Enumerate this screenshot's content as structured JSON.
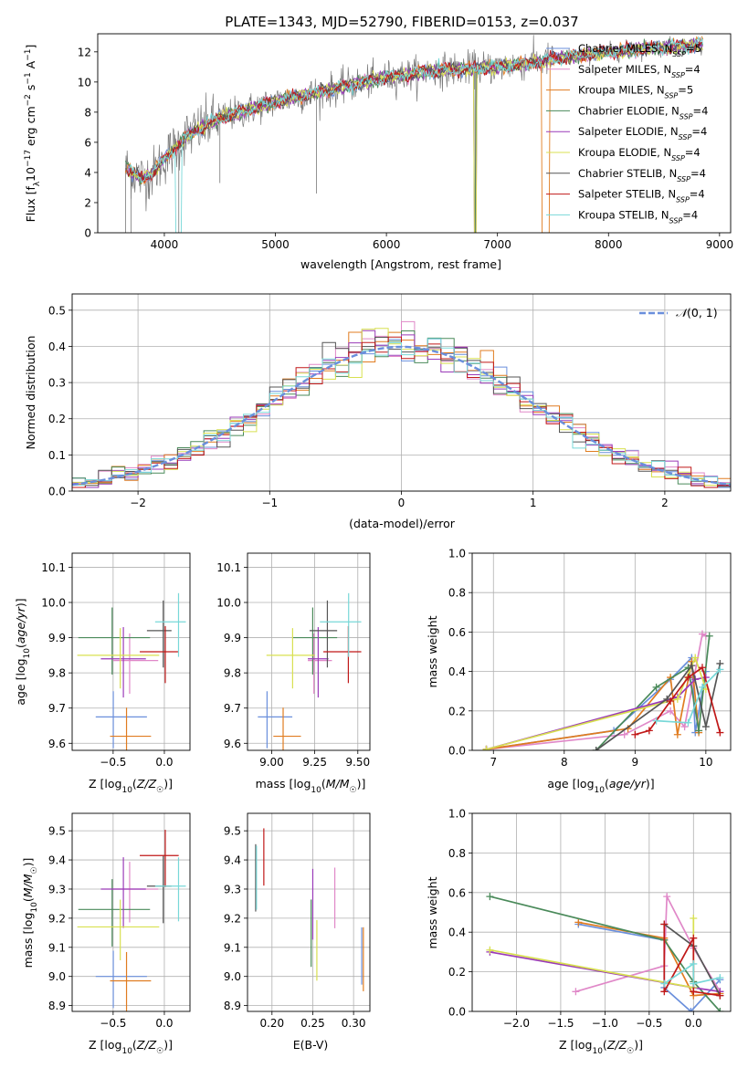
{
  "figure_title": "PLATE=1343, MJD=52790, FIBERID=0153, z=0.037",
  "colors": {
    "Chabrier MILES": "#6a8fdc",
    "Salpeter MILES": "#e088c8",
    "Kroupa MILES": "#e07c20",
    "Chabrier ELODIE": "#4a8a5a",
    "Salpeter ELODIE": "#9a3ab8",
    "Kroupa ELODIE": "#d8e050",
    "Chabrier STELIB": "#555555",
    "Salpeter STELIB": "#c01818",
    "Kroupa STELIB": "#78d8d8",
    "data": "#7a7a7a"
  },
  "legend": [
    {
      "model": "Chabrier MILES",
      "n": "5"
    },
    {
      "model": "Salpeter MILES",
      "n": "4"
    },
    {
      "model": "Kroupa MILES",
      "n": "5"
    },
    {
      "model": "Chabrier ELODIE",
      "n": "4"
    },
    {
      "model": "Salpeter ELODIE",
      "n": "4"
    },
    {
      "model": "Kroupa ELODIE",
      "n": "4"
    },
    {
      "model": "Chabrier STELIB",
      "n": "4"
    },
    {
      "model": "Salpeter STELIB",
      "n": "4"
    },
    {
      "model": "Kroupa STELIB",
      "n": "4"
    }
  ],
  "chart_data": [
    {
      "type": "line",
      "panel": "spectrum",
      "xlabel": "wavelength [Angstrom, rest frame]",
      "ylabel": "Flux [f_λ 10^-17 erg cm^-2 s^-1 A^-1]",
      "xlim": [
        3400,
        9100
      ],
      "ylim": [
        0,
        13.2
      ],
      "xticks": [
        4000,
        5000,
        6000,
        7000,
        8000,
        9000
      ],
      "yticks": [
        0,
        2,
        4,
        6,
        8,
        10,
        12
      ],
      "continuum_x": [
        3650,
        3800,
        3900,
        4000,
        4200,
        4500,
        5000,
        5500,
        6000,
        6500,
        7000,
        7500,
        8000,
        8500,
        8850
      ],
      "continuum_y": [
        4.3,
        3.6,
        4.0,
        4.9,
        6.4,
        7.6,
        8.7,
        9.5,
        10.3,
        10.8,
        11.0,
        11.5,
        12.0,
        12.3,
        12.5
      ],
      "grid": false,
      "legend_position": "upper right"
    },
    {
      "type": "histogram",
      "panel": "residuals",
      "xlabel": "(data-model)/error",
      "ylabel": "Normed distribution",
      "xlim": [
        -2.5,
        2.5
      ],
      "ylim": [
        0,
        0.545
      ],
      "xticks": [
        -2,
        -1,
        0,
        1,
        2
      ],
      "yticks": [
        0.0,
        0.1,
        0.2,
        0.3,
        0.4,
        0.5
      ],
      "bin_width": 0.1,
      "reference_curve": "N(0,1)",
      "grid": true,
      "legend_position": "upper right"
    },
    {
      "type": "scatter",
      "panel": "age-vs-Z",
      "xlabel": "Z [log10(Z/Z☉)]",
      "ylabel": "age [log10(age/yr)]",
      "xlim": [
        -0.9,
        0.25
      ],
      "ylim": [
        9.58,
        10.14
      ],
      "xticks": [
        -0.5,
        0.0
      ],
      "yticks": [
        9.6,
        9.7,
        9.8,
        9.9,
        10.0,
        10.1
      ],
      "points": [
        {
          "model": "Chabrier MILES",
          "x": -0.42,
          "xerr": 0.25,
          "y": 9.675,
          "yerr": 0.0
        },
        {
          "model": "Salpeter MILES",
          "x": -0.28,
          "xerr": 0.22,
          "y": 9.835,
          "yerr": 0.0
        },
        {
          "model": "Kroupa MILES",
          "x": -0.33,
          "xerr": 0.2,
          "y": 9.62,
          "yerr": 0.0
        },
        {
          "model": "Chabrier ELODIE",
          "x": -0.49,
          "xerr": 0.35,
          "y": 9.9,
          "yerr": 0.0
        },
        {
          "model": "Salpeter ELODIE",
          "x": -0.4,
          "xerr": 0.22,
          "y": 9.84,
          "yerr": 0.0
        },
        {
          "model": "Kroupa ELODIE",
          "x": -0.45,
          "xerr": 0.4,
          "y": 9.85,
          "yerr": 0.0
        },
        {
          "model": "Chabrier STELIB",
          "x": -0.05,
          "xerr": 0.12,
          "y": 9.92,
          "yerr": 0.0
        },
        {
          "model": "Salpeter STELIB",
          "x": -0.05,
          "xerr": 0.19,
          "y": 9.86,
          "yerr": 0.0
        },
        {
          "model": "Kroupa STELIB",
          "x": 0.06,
          "xerr": 0.15,
          "y": 9.945,
          "yerr": 0.0
        }
      ],
      "grid": true
    },
    {
      "type": "scatter",
      "panel": "age-vs-mass",
      "xlabel": "mass [log10(M/M☉)]",
      "ylabel": "",
      "xlim": [
        8.86,
        9.57
      ],
      "ylim": [
        9.58,
        10.14
      ],
      "xticks": [
        9.0,
        9.25,
        9.5
      ],
      "yticks": [
        9.6,
        9.7,
        9.8,
        9.9,
        10.0,
        10.1
      ],
      "points": [
        {
          "model": "Chabrier MILES",
          "x": 9.02,
          "xerr": 0.1,
          "y": 9.675,
          "yerr": 0.0
        },
        {
          "model": "Salpeter MILES",
          "x": 9.28,
          "xerr": 0.07,
          "y": 9.835,
          "yerr": 0.0
        },
        {
          "model": "Kroupa MILES",
          "x": 9.09,
          "xerr": 0.08,
          "y": 9.62,
          "yerr": 0.0
        },
        {
          "model": "Chabrier ELODIE",
          "x": 9.25,
          "xerr": 0.13,
          "y": 9.9,
          "yerr": 0.0
        },
        {
          "model": "Salpeter ELODIE",
          "x": 9.27,
          "xerr": 0.06,
          "y": 9.84,
          "yerr": 0.0
        },
        {
          "model": "Kroupa ELODIE",
          "x": 9.11,
          "xerr": 0.14,
          "y": 9.85,
          "yerr": 0.0
        },
        {
          "model": "Chabrier STELIB",
          "x": 9.3,
          "xerr": 0.08,
          "y": 9.92,
          "yerr": 0.0
        },
        {
          "model": "Salpeter STELIB",
          "x": 9.41,
          "xerr": 0.11,
          "y": 9.86,
          "yerr": 0.0
        },
        {
          "model": "Kroupa STELIB",
          "x": 9.4,
          "xerr": 0.12,
          "y": 9.945,
          "yerr": 0.0
        }
      ],
      "grid": true
    },
    {
      "type": "line",
      "panel": "mass-weight-vs-age",
      "xlabel": "age [log10(age/yr)]",
      "ylabel": "mass weight",
      "xlim": [
        6.7,
        10.35
      ],
      "ylim": [
        0,
        1
      ],
      "xticks": [
        7,
        8,
        9,
        10
      ],
      "yticks": [
        0.0,
        0.2,
        0.4,
        0.6,
        0.8,
        1.0
      ],
      "series": [
        {
          "model": "Chabrier MILES",
          "x": [
            6.9,
            8.7,
            9.5,
            9.8,
            9.85,
            10.0
          ],
          "y": [
            0.005,
            0.1,
            0.36,
            0.47,
            0.09,
            0.4
          ]
        },
        {
          "model": "Salpeter MILES",
          "x": [
            6.9,
            8.85,
            9.5,
            9.7,
            9.95,
            10.0
          ],
          "y": [
            0.005,
            0.08,
            0.2,
            0.12,
            0.59,
            0.58
          ]
        },
        {
          "model": "Kroupa MILES",
          "x": [
            6.9,
            8.9,
            9.5,
            9.6,
            9.8,
            9.9
          ],
          "y": [
            0.005,
            0.11,
            0.37,
            0.08,
            0.45,
            0.09
          ]
        },
        {
          "model": "Chabrier ELODIE",
          "x": [
            8.45,
            9.3,
            9.75,
            9.9,
            10.05
          ],
          "y": [
            0.0,
            0.32,
            0.42,
            0.1,
            0.58
          ]
        },
        {
          "model": "Salpeter ELODIE",
          "x": [
            6.9,
            9.6,
            9.85,
            10.0
          ],
          "y": [
            0.005,
            0.27,
            0.36,
            0.37
          ]
        },
        {
          "model": "Kroupa ELODIE",
          "x": [
            6.9,
            9.6,
            9.85,
            10.0
          ],
          "y": [
            0.005,
            0.26,
            0.47,
            0.31
          ]
        },
        {
          "model": "Chabrier STELIB",
          "x": [
            8.45,
            9.45,
            9.8,
            10.0,
            10.2
          ],
          "y": [
            0.0,
            0.26,
            0.43,
            0.12,
            0.44
          ]
        },
        {
          "model": "Salpeter STELIB",
          "x": [
            9.0,
            9.2,
            9.5,
            9.75,
            9.95,
            10.2
          ],
          "y": [
            0.08,
            0.1,
            0.25,
            0.37,
            0.42,
            0.09
          ]
        },
        {
          "model": "Kroupa STELIB",
          "x": [
            9.3,
            9.75,
            9.95,
            10.2
          ],
          "y": [
            0.15,
            0.14,
            0.32,
            0.41
          ]
        }
      ],
      "grid": true
    },
    {
      "type": "scatter",
      "panel": "mass-vs-Z",
      "xlabel": "Z [log10(Z/Z☉)]",
      "ylabel": "mass [log10(M/M☉)]",
      "xlim": [
        -0.9,
        0.25
      ],
      "ylim": [
        8.88,
        9.56
      ],
      "xticks": [
        -0.5,
        0.0
      ],
      "yticks": [
        8.9,
        9.0,
        9.1,
        9.2,
        9.3,
        9.4,
        9.5
      ],
      "points": [
        {
          "model": "Chabrier MILES",
          "x": -0.42,
          "xerr": 0.25,
          "y": 9.0,
          "yerr": 0.0
        },
        {
          "model": "Salpeter MILES",
          "x": -0.28,
          "xerr": 0.22,
          "y": 9.3,
          "yerr": 0.0
        },
        {
          "model": "Kroupa MILES",
          "x": -0.33,
          "xerr": 0.2,
          "y": 8.985,
          "yerr": 0.0
        },
        {
          "model": "Chabrier ELODIE",
          "x": -0.49,
          "xerr": 0.35,
          "y": 9.23,
          "yerr": 0.0
        },
        {
          "model": "Salpeter ELODIE",
          "x": -0.4,
          "xerr": 0.22,
          "y": 9.3,
          "yerr": 0.0
        },
        {
          "model": "Kroupa ELODIE",
          "x": -0.45,
          "xerr": 0.4,
          "y": 9.17,
          "yerr": 0.0
        },
        {
          "model": "Chabrier STELIB",
          "x": -0.05,
          "xerr": 0.12,
          "y": 9.31,
          "yerr": 0.0
        },
        {
          "model": "Salpeter STELIB",
          "x": -0.05,
          "xerr": 0.19,
          "y": 9.415,
          "yerr": 0.0
        },
        {
          "model": "Kroupa STELIB",
          "x": 0.06,
          "xerr": 0.15,
          "y": 9.31,
          "yerr": 0.0
        }
      ],
      "grid": true
    },
    {
      "type": "scatter",
      "panel": "mass-vs-EBV",
      "xlabel": "E(B-V)",
      "ylabel": "",
      "xlim": [
        0.17,
        0.32
      ],
      "ylim": [
        8.88,
        9.56
      ],
      "xticks": [
        0.2,
        0.25,
        0.3
      ],
      "yticks": [
        8.9,
        9.0,
        9.1,
        9.2,
        9.3,
        9.4,
        9.5
      ],
      "points": [
        {
          "model": "Chabrier MILES",
          "x": 0.31,
          "y": 9.08
        },
        {
          "model": "Salpeter MILES",
          "x": 0.277,
          "y": 9.28
        },
        {
          "model": "Kroupa MILES",
          "x": 0.312,
          "y": 9.07
        },
        {
          "model": "Chabrier ELODIE",
          "x": 0.248,
          "y": 9.16
        },
        {
          "model": "Salpeter ELODIE",
          "x": 0.25,
          "y": 9.26
        },
        {
          "model": "Kroupa ELODIE",
          "x": 0.255,
          "y": 9.1
        },
        {
          "model": "Chabrier STELIB",
          "x": 0.18,
          "y": 9.35
        },
        {
          "model": "Salpeter STELIB",
          "x": 0.19,
          "y": 9.42
        },
        {
          "model": "Kroupa STELIB",
          "x": 0.181,
          "y": 9.35
        }
      ],
      "grid": true
    },
    {
      "type": "line",
      "panel": "mass-weight-vs-Z",
      "xlabel": "Z [log10(Z/Z☉)]",
      "ylabel": "mass weight",
      "xlim": [
        -2.5,
        0.42
      ],
      "ylim": [
        0,
        1
      ],
      "xticks": [
        -2.0,
        -1.5,
        -1.0,
        -0.5,
        0.0
      ],
      "yticks": [
        0.0,
        0.2,
        0.4,
        0.6,
        0.8,
        1.0
      ],
      "series": [
        {
          "model": "Chabrier MILES",
          "x": [
            -1.3,
            -0.33,
            -0.33,
            -0.03,
            0.3
          ],
          "y": [
            0.44,
            0.36,
            0.12,
            0.0,
            0.16
          ]
        },
        {
          "model": "Salpeter MILES",
          "x": [
            -1.33,
            -0.33,
            -0.3,
            0.0,
            0.3
          ],
          "y": [
            0.1,
            0.23,
            0.58,
            0.32,
            0.1
          ]
        },
        {
          "model": "Kroupa MILES",
          "x": [
            -1.3,
            -0.33,
            0.0,
            0.3
          ],
          "y": [
            0.45,
            0.37,
            0.08,
            0.09
          ]
        },
        {
          "model": "Chabrier ELODIE",
          "x": [
            -2.3,
            -0.33,
            0.0,
            0.3
          ],
          "y": [
            0.58,
            0.36,
            0.15,
            0.0
          ]
        },
        {
          "model": "Salpeter ELODIE",
          "x": [
            -2.3,
            0.0,
            0.3
          ],
          "y": [
            0.3,
            0.12,
            0.1
          ]
        },
        {
          "model": "Kroupa ELODIE",
          "x": [
            -2.3,
            0.0,
            0.0
          ],
          "y": [
            0.31,
            0.12,
            0.47
          ]
        },
        {
          "model": "Chabrier STELIB",
          "x": [
            -0.33,
            0.0,
            0.3
          ],
          "y": [
            0.44,
            0.33,
            0.08
          ]
        },
        {
          "model": "Salpeter STELIB",
          "x": [
            -0.33,
            -0.33,
            0.0,
            0.0,
            0.3
          ],
          "y": [
            0.44,
            0.1,
            0.37,
            0.1,
            0.08
          ]
        },
        {
          "model": "Kroupa STELIB",
          "x": [
            -0.33,
            0.0,
            0.0,
            0.3
          ],
          "y": [
            0.14,
            0.24,
            0.14,
            0.17
          ]
        }
      ],
      "grid": true
    }
  ]
}
